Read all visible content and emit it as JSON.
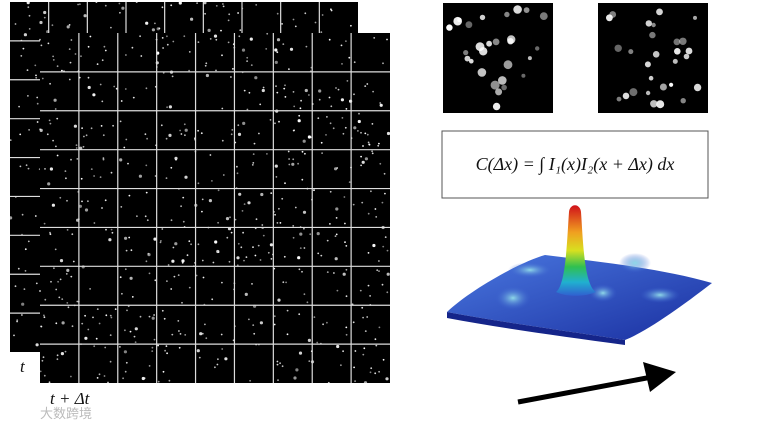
{
  "labels": {
    "frame_a": "t",
    "frame_b": "t + Δt"
  },
  "formula": "C(Δx) = ∫ I₁(x)I₂(x + Δx) dx",
  "watermark": "大数跨境"
}
